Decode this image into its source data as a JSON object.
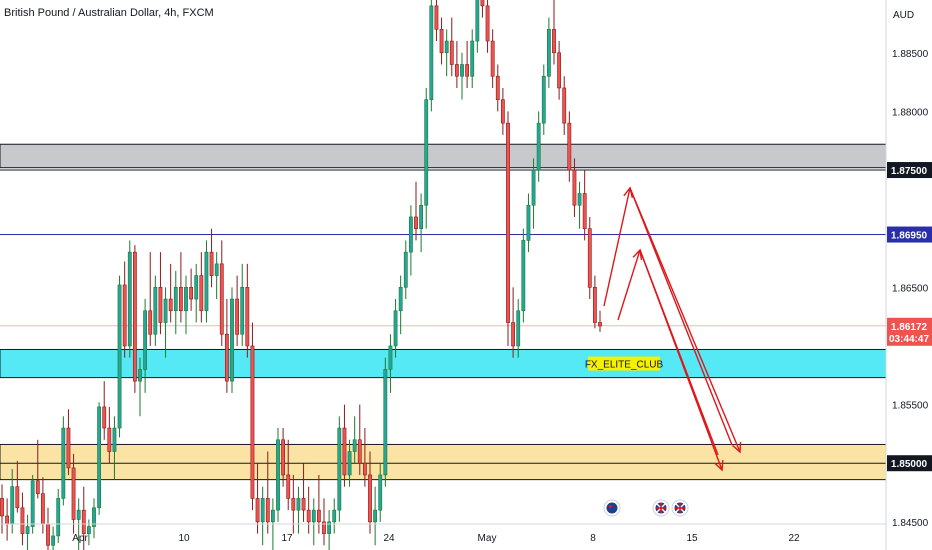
{
  "chart_data": {
    "type": "candlestick",
    "title": "British Pound / Australian Dollar, 4h, FXCM",
    "y_axis": {
      "unit_label": "AUD",
      "ticks": [
        "1.88500",
        "1.88000",
        "1.86500",
        "1.85500",
        "1.84500"
      ],
      "tick_values": [
        1.885,
        1.88,
        1.865,
        1.855,
        1.845
      ],
      "ylim": [
        1.8426,
        1.8895
      ]
    },
    "x_axis": {
      "ticks": [
        "Apr",
        "10",
        "17",
        "24",
        "May",
        "8",
        "15",
        "22"
      ]
    },
    "price_tags": [
      {
        "label": "1.87500",
        "value": 1.875,
        "style": "dark"
      },
      {
        "label": "1.86950",
        "value": 1.8695,
        "style": "blue"
      },
      {
        "label": "1.86172",
        "sublabel": "03:44:47",
        "value": 1.86172,
        "style": "red"
      },
      {
        "label": "1.85000",
        "value": 1.85,
        "style": "dark"
      }
    ],
    "zones": [
      {
        "name": "grey-resistance",
        "from": 1.8752,
        "to": 1.8772,
        "color": "#c8c9cc"
      },
      {
        "name": "cyan-support",
        "from": 1.8573,
        "to": 1.8597,
        "color": "#55e8f5"
      },
      {
        "name": "yellow-support",
        "from": 1.8486,
        "to": 1.8516,
        "color": "#fbe3a3"
      }
    ],
    "annotation": {
      "text": "FX_ELITE_CLUB",
      "bg": "#f5f100"
    },
    "colors": {
      "up": "#26a69a",
      "up_dark": "#1b7a2f",
      "down": "#ef5350",
      "down_dark": "#8b1a1a",
      "arrow": "#e0161b",
      "blue_line": "#2a2ea8"
    },
    "event_icons": [
      "australia-flag-icon",
      "uk-flag-icon",
      "uk-flag-icon"
    ],
    "candles": [
      [
        1.847,
        1.8482,
        1.844,
        1.8455
      ],
      [
        1.8455,
        1.847,
        1.8434,
        1.8448
      ],
      [
        1.8448,
        1.8495,
        1.844,
        1.848
      ],
      [
        1.848,
        1.8502,
        1.8458,
        1.8462
      ],
      [
        1.8462,
        1.8475,
        1.843,
        1.844
      ],
      [
        1.844,
        1.8456,
        1.842,
        1.8446
      ],
      [
        1.8446,
        1.849,
        1.844,
        1.8485
      ],
      [
        1.8485,
        1.852,
        1.847,
        1.8474
      ],
      [
        1.8474,
        1.8488,
        1.844,
        1.8448
      ],
      [
        1.8448,
        1.8462,
        1.8418,
        1.843
      ],
      [
        1.843,
        1.8446,
        1.8412,
        1.8438
      ],
      [
        1.8438,
        1.8478,
        1.8432,
        1.847
      ],
      [
        1.847,
        1.854,
        1.8464,
        1.853
      ],
      [
        1.853,
        1.8546,
        1.849,
        1.8496
      ],
      [
        1.8496,
        1.8508,
        1.844,
        1.8452
      ],
      [
        1.8452,
        1.847,
        1.8426,
        1.846
      ],
      [
        1.846,
        1.848,
        1.842,
        1.844
      ],
      [
        1.844,
        1.8452,
        1.843,
        1.8446
      ],
      [
        1.8446,
        1.847,
        1.8436,
        1.8462
      ],
      [
        1.8462,
        1.8552,
        1.8456,
        1.8548
      ],
      [
        1.8548,
        1.857,
        1.852,
        1.853
      ],
      [
        1.853,
        1.8548,
        1.85,
        1.851
      ],
      [
        1.851,
        1.854,
        1.8486,
        1.853
      ],
      [
        1.853,
        1.866,
        1.8522,
        1.8652
      ],
      [
        1.8652,
        1.8672,
        1.859,
        1.86
      ],
      [
        1.86,
        1.869,
        1.859,
        1.868
      ],
      [
        1.868,
        1.8686,
        1.856,
        1.857
      ],
      [
        1.857,
        1.859,
        1.854,
        1.858
      ],
      [
        1.858,
        1.864,
        1.856,
        1.863
      ],
      [
        1.863,
        1.868,
        1.86,
        1.861
      ],
      [
        1.861,
        1.866,
        1.86,
        1.865
      ],
      [
        1.865,
        1.868,
        1.861,
        1.862
      ],
      [
        1.862,
        1.865,
        1.859,
        1.864
      ],
      [
        1.864,
        1.867,
        1.862,
        1.863
      ],
      [
        1.863,
        1.8664,
        1.861,
        1.865
      ],
      [
        1.865,
        1.868,
        1.862,
        1.863
      ],
      [
        1.863,
        1.866,
        1.861,
        1.865
      ],
      [
        1.865,
        1.8666,
        1.863,
        1.864
      ],
      [
        1.864,
        1.867,
        1.862,
        1.866
      ],
      [
        1.866,
        1.868,
        1.862,
        1.863
      ],
      [
        1.863,
        1.869,
        1.862,
        1.868
      ],
      [
        1.868,
        1.87,
        1.865,
        1.866
      ],
      [
        1.866,
        1.868,
        1.864,
        1.867
      ],
      [
        1.867,
        1.869,
        1.86,
        1.861
      ],
      [
        1.861,
        1.864,
        1.856,
        1.857
      ],
      [
        1.857,
        1.865,
        1.856,
        1.864
      ],
      [
        1.864,
        1.866,
        1.86,
        1.861
      ],
      [
        1.861,
        1.867,
        1.86,
        1.865
      ],
      [
        1.865,
        1.867,
        1.859,
        1.86
      ],
      [
        1.86,
        1.862,
        1.846,
        1.847
      ],
      [
        1.847,
        1.85,
        1.844,
        1.845
      ],
      [
        1.845,
        1.848,
        1.843,
        1.847
      ],
      [
        1.847,
        1.851,
        1.844,
        1.845
      ],
      [
        1.845,
        1.847,
        1.842,
        1.846
      ],
      [
        1.846,
        1.853,
        1.845,
        1.852
      ],
      [
        1.852,
        1.853,
        1.848,
        1.849
      ],
      [
        1.849,
        1.852,
        1.846,
        1.847
      ],
      [
        1.847,
        1.849,
        1.844,
        1.846
      ],
      [
        1.846,
        1.848,
        1.844,
        1.847
      ],
      [
        1.847,
        1.85,
        1.845,
        1.846
      ],
      [
        1.846,
        1.848,
        1.844,
        1.845
      ],
      [
        1.845,
        1.847,
        1.843,
        1.846
      ],
      [
        1.846,
        1.849,
        1.844,
        1.845
      ],
      [
        1.845,
        1.847,
        1.843,
        1.844
      ],
      [
        1.844,
        1.846,
        1.842,
        1.845
      ],
      [
        1.845,
        1.847,
        1.844,
        1.846
      ],
      [
        1.846,
        1.854,
        1.845,
        1.853
      ],
      [
        1.853,
        1.855,
        1.848,
        1.849
      ],
      [
        1.849,
        1.852,
        1.848,
        1.851
      ],
      [
        1.851,
        1.854,
        1.85,
        1.852
      ],
      [
        1.852,
        1.855,
        1.849,
        1.85
      ],
      [
        1.85,
        1.853,
        1.848,
        1.849
      ],
      [
        1.849,
        1.851,
        1.844,
        1.845
      ],
      [
        1.845,
        1.848,
        1.843,
        1.846
      ],
      [
        1.846,
        1.85,
        1.845,
        1.849
      ],
      [
        1.849,
        1.859,
        1.848,
        1.858
      ],
      [
        1.858,
        1.861,
        1.856,
        1.86
      ],
      [
        1.86,
        1.864,
        1.859,
        1.863
      ],
      [
        1.863,
        1.866,
        1.861,
        1.865
      ],
      [
        1.865,
        1.869,
        1.864,
        1.868
      ],
      [
        1.868,
        1.872,
        1.866,
        1.871
      ],
      [
        1.871,
        1.874,
        1.869,
        1.87
      ],
      [
        1.87,
        1.873,
        1.868,
        1.872
      ],
      [
        1.872,
        1.882,
        1.87,
        1.881
      ],
      [
        1.881,
        1.89,
        1.88,
        1.889
      ],
      [
        1.889,
        1.891,
        1.886,
        1.887
      ],
      [
        1.887,
        1.888,
        1.884,
        1.885
      ],
      [
        1.885,
        1.887,
        1.883,
        1.886
      ],
      [
        1.886,
        1.888,
        1.883,
        1.884
      ],
      [
        1.884,
        1.886,
        1.882,
        1.883
      ],
      [
        1.883,
        1.885,
        1.881,
        1.884
      ],
      [
        1.884,
        1.886,
        1.882,
        1.883
      ],
      [
        1.883,
        1.887,
        1.882,
        1.886
      ],
      [
        1.886,
        1.891,
        1.885,
        1.89
      ],
      [
        1.89,
        1.892,
        1.888,
        1.889
      ],
      [
        1.889,
        1.89,
        1.885,
        1.886
      ],
      [
        1.886,
        1.887,
        1.882,
        1.883
      ],
      [
        1.883,
        1.884,
        1.88,
        1.881
      ],
      [
        1.881,
        1.882,
        1.878,
        1.879
      ],
      [
        1.879,
        1.88,
        1.86,
        1.862
      ],
      [
        1.862,
        1.865,
        1.859,
        1.86
      ],
      [
        1.86,
        1.864,
        1.859,
        1.863
      ],
      [
        1.863,
        1.87,
        1.862,
        1.869
      ],
      [
        1.869,
        1.873,
        1.868,
        1.872
      ],
      [
        1.872,
        1.876,
        1.87,
        1.875
      ],
      [
        1.875,
        1.88,
        1.874,
        1.879
      ],
      [
        1.879,
        1.884,
        1.878,
        1.883
      ],
      [
        1.883,
        1.888,
        1.882,
        1.887
      ],
      [
        1.887,
        1.89,
        1.884,
        1.885
      ],
      [
        1.885,
        1.886,
        1.881,
        1.882
      ],
      [
        1.882,
        1.883,
        1.878,
        1.879
      ],
      [
        1.879,
        1.88,
        1.874,
        1.875
      ],
      [
        1.875,
        1.876,
        1.871,
        1.872
      ],
      [
        1.872,
        1.874,
        1.87,
        1.873
      ],
      [
        1.873,
        1.875,
        1.869,
        1.87
      ],
      [
        1.87,
        1.871,
        1.864,
        1.865
      ],
      [
        1.865,
        1.866,
        1.8615,
        1.862
      ],
      [
        1.862,
        1.863,
        1.8612,
        1.8617
      ]
    ]
  }
}
